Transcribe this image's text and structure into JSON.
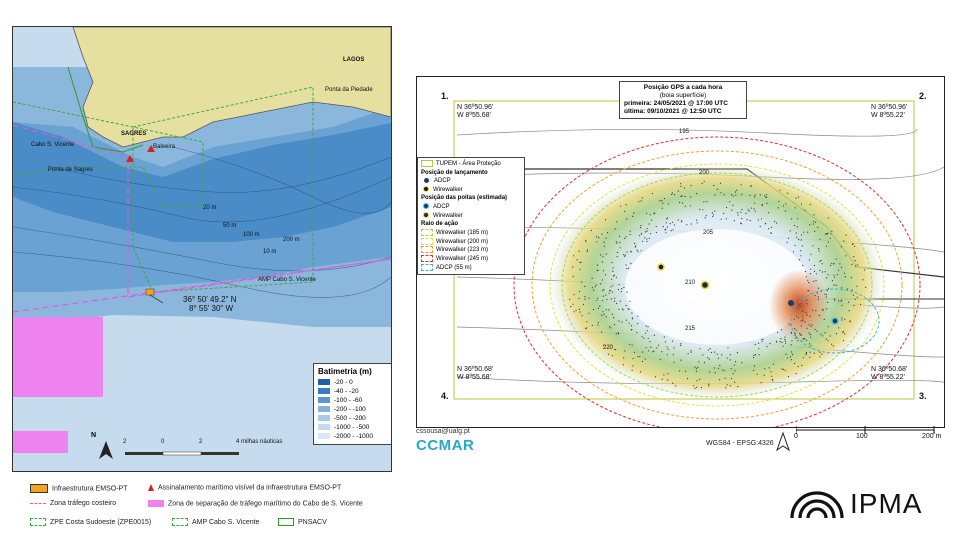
{
  "left_map": {
    "places": {
      "lagos": "LAGOS",
      "sagres": "SAGRES",
      "cabo_sao_vicente": "Cabo S. Vicente",
      "ponta_de_sagres": "Ponta de Sagres",
      "baleeira": "Baleeira",
      "ponta_da_piedade": "Ponta da Piedade",
      "amp_label": "AMP Cabo S. Vicente"
    },
    "site_coord_lat": "36° 50' 49.2\" N",
    "site_coord_lon": "8° 55' 30\" W",
    "contour_labels": [
      "20 m",
      "50 m",
      "100 m",
      "200 m",
      "10 m"
    ],
    "bathymetry_legend": {
      "title": "Batimetria (m)",
      "classes": [
        {
          "label": "-20 - 0",
          "color": "#1f5fa8"
        },
        {
          "label": "-40 - -20",
          "color": "#3a7cc0"
        },
        {
          "label": "-100 - -60",
          "color": "#5a97cf"
        },
        {
          "label": "-200 - -100",
          "color": "#84b4dc"
        },
        {
          "label": "-500 - -200",
          "color": "#a9cbe6"
        },
        {
          "label": "-1000 - -500",
          "color": "#c3daef"
        },
        {
          "label": "-2000 - -1000",
          "color": "#dae8f5"
        }
      ]
    },
    "scale_bar": {
      "ticks": [
        "2",
        "0",
        "2",
        "4"
      ],
      "unit": "4 milhas náuticas"
    },
    "north": "N",
    "colors": {
      "land": "#e6e0a0",
      "shallow": "#3f84c4",
      "mid": "#8cb7dd",
      "deep": "#c7dbee",
      "traffic_zone": "#ee82ee",
      "traffic_line": "#d95fd9",
      "protected": "#4caf50"
    }
  },
  "bottom_legend": {
    "infra": "Infraestrutura EMSO-PT",
    "signal": "Assinalamento marítimo visível da infraestrutura EMSO-PT",
    "coastal_traffic": "Zona tráfego costeiro",
    "separation": "Zona de separação de tráfego marítimo do Cabo de S. Vicente",
    "zpe": "ZPE Costa Sudoeste (ZPE0015)",
    "amp": "AMP Cabo S. Vicente",
    "pnsacv": "PNSACV"
  },
  "right_map": {
    "header_title": "Posição GPS a cada hora",
    "header_sub": "(boia superfície)",
    "header_first": "primeira: 24/05/2021 @ 17:00 UTC",
    "header_last": "última: 09/10/2021 @ 12:50 UTC",
    "corners": [
      {
        "num": "1.",
        "lat": "N 36º50.96'",
        "lon": "W 8º55.68'"
      },
      {
        "num": "2.",
        "lat": "N 36º50.96'",
        "lon": "W 8º55.22'"
      },
      {
        "num": "3.",
        "lat": "N 36º50.68'",
        "lon": "W 8º55.22'"
      },
      {
        "num": "4.",
        "lat": "N 36º50.68'",
        "lon": "W 8º55.68'"
      }
    ],
    "contours": [
      "195",
      "200",
      "205",
      "210",
      "215",
      "220"
    ],
    "legend": {
      "tupem": "TUPEM - Área Proteção",
      "launch_title": "Posição de lançamento",
      "launch_adcp": "ADCP",
      "launch_wirewalker": "Wirewalker",
      "anchor_title": "Posição das poitas (estimada)",
      "anchor_adcp": "ADCP",
      "anchor_wirewalker": "Wirewalker",
      "range_title": "Raio de ação",
      "ranges": [
        {
          "label": "Wirewalker (185 m)",
          "color": "#a6d84a"
        },
        {
          "label": "Wirewalker (200 m)",
          "color": "#e8e03a"
        },
        {
          "label": "Wirewalker (223 m)",
          "color": "#f0a030"
        },
        {
          "label": "Wirewalker (245 m)",
          "color": "#e03030"
        },
        {
          "label": "ADCP (55 m)",
          "color": "#40b0d8"
        }
      ]
    },
    "scale": {
      "ticks": [
        "0",
        "100",
        "200 m"
      ]
    },
    "crs": "WGS84 - EPSG:4326",
    "email": "cssousa@ualg.pt",
    "org": "CCMAR"
  },
  "brand": {
    "ipma": "IPMA"
  }
}
